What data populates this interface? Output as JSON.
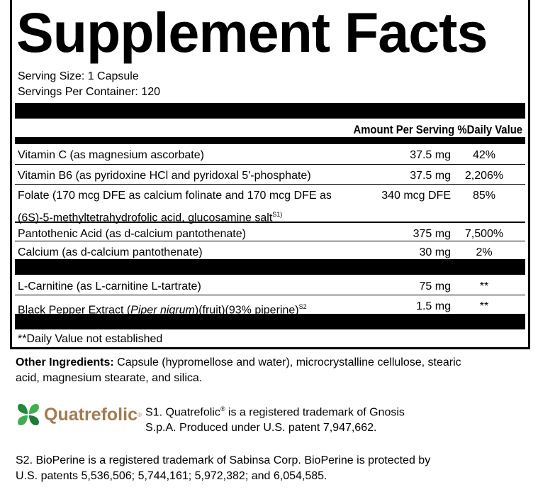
{
  "title": "Supplement Facts",
  "serving_size": "Serving Size: 1 Capsule",
  "servings_per_container": "Servings Per Container: 120",
  "header": {
    "amount": "Amount Per Serving",
    "dv": "%Daily Value"
  },
  "rows1": [
    {
      "name": "Vitamin C (as magnesium ascorbate)",
      "amount": "37.5 mg",
      "dv": "42%"
    },
    {
      "name": "Vitamin B6 (as pyridoxine HCl and pyridoxal 5'-phosphate)",
      "amount": "37.5 mg",
      "dv": "2,206%"
    },
    {
      "name": "Folate (170 mcg DFE as calcium folinate and 170 mcg DFE as",
      "name2": "(6S)-5-methyltetrahydrofolic acid, glucosamine salt",
      "sup": "S1)",
      "amount": "340 mcg DFE",
      "dv": "85%"
    },
    {
      "name": "Pantothenic Acid (as d-calcium pantothenate)",
      "amount": "375 mg",
      "dv": "7,500%"
    },
    {
      "name": "Calcium (as d-calcium pantothenate)",
      "amount": "30 mg",
      "dv": "2%"
    }
  ],
  "rows2": [
    {
      "name": "L-Carnitine (as L-carnitine L-tartrate)",
      "amount": "75 mg",
      "dv": "**"
    },
    {
      "name_pre": "Black Pepper Extract (",
      "name_italic": "Piper nigrum",
      "name_post": ")(fruit)(93% piperine)",
      "sup": "S2",
      "amount": "1.5 mg",
      "dv": "**"
    }
  ],
  "footnote": "**Daily Value not established",
  "other": {
    "label": "Other Ingredients:",
    "line1": " Capsule (hypromellose and water), microcrystalline cellulose, stearic",
    "line2": "acid, magnesium stearate, and silica."
  },
  "logo": {
    "text": "Quatrefolic",
    "mark": "®",
    "colors": {
      "leaf": "#2e9e45",
      "word": "#a57b50"
    }
  },
  "s1": {
    "line1_pre": "S1. Quatrefolic",
    "reg": "®",
    "line1_post": " is a registered trademark of Gnosis",
    "line2": "S.p.A. Produced under U.S. patent 7,947,662."
  },
  "s2": {
    "line1": "S2. BioPerine is a registered trademark of Sabinsa Corp. BioPerine is protected by",
    "line2": "U.S. patents 5,536,506; 5,744,161; 5,972,382; and 6,054,585."
  }
}
